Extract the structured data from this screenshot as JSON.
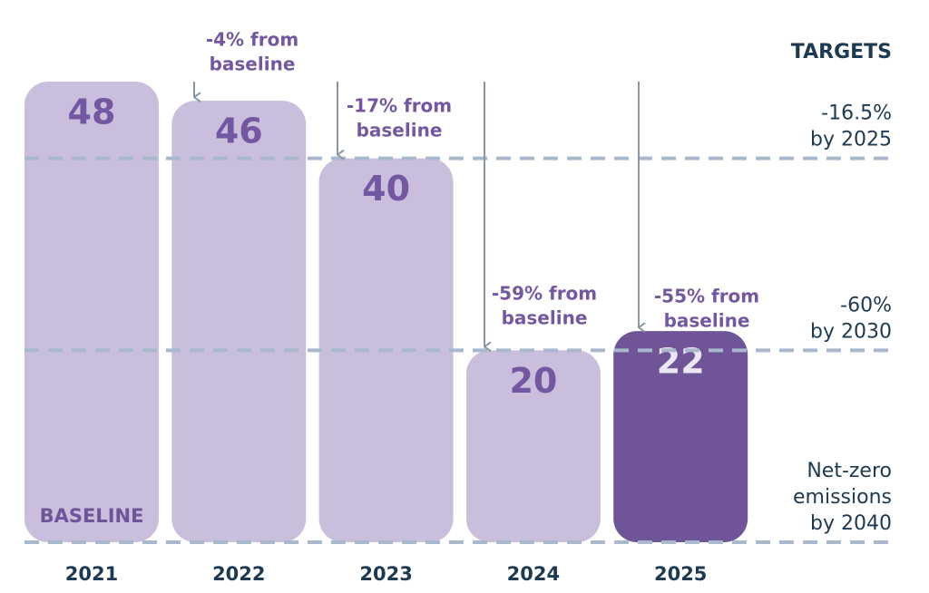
{
  "chart_data": {
    "type": "bar",
    "categories": [
      "2021",
      "2022",
      "2023",
      "2024",
      "2025"
    ],
    "values": [
      48,
      46,
      40,
      20,
      22
    ],
    "colors": [
      "#c9bfdc",
      "#c9bfdc",
      "#c9bfdc",
      "#c9bfdc",
      "#6f5497"
    ],
    "ylim": [
      0,
      48
    ],
    "baseline_label": "BASELINE",
    "annotations": [
      null,
      [
        "-4% from",
        "baseline"
      ],
      [
        "-17% from",
        "baseline"
      ],
      [
        "-59% from",
        "baseline"
      ],
      [
        "-55% from",
        "baseline"
      ]
    ],
    "targets_title": "TARGETS",
    "targets": [
      {
        "value": 40,
        "label": [
          "-16.5%",
          "by 2025"
        ]
      },
      {
        "value": 20,
        "label": [
          "-60%",
          "by 2030"
        ]
      },
      {
        "value": 0,
        "label": [
          "Net-zero",
          "emissions",
          "by 2040"
        ]
      }
    ]
  }
}
